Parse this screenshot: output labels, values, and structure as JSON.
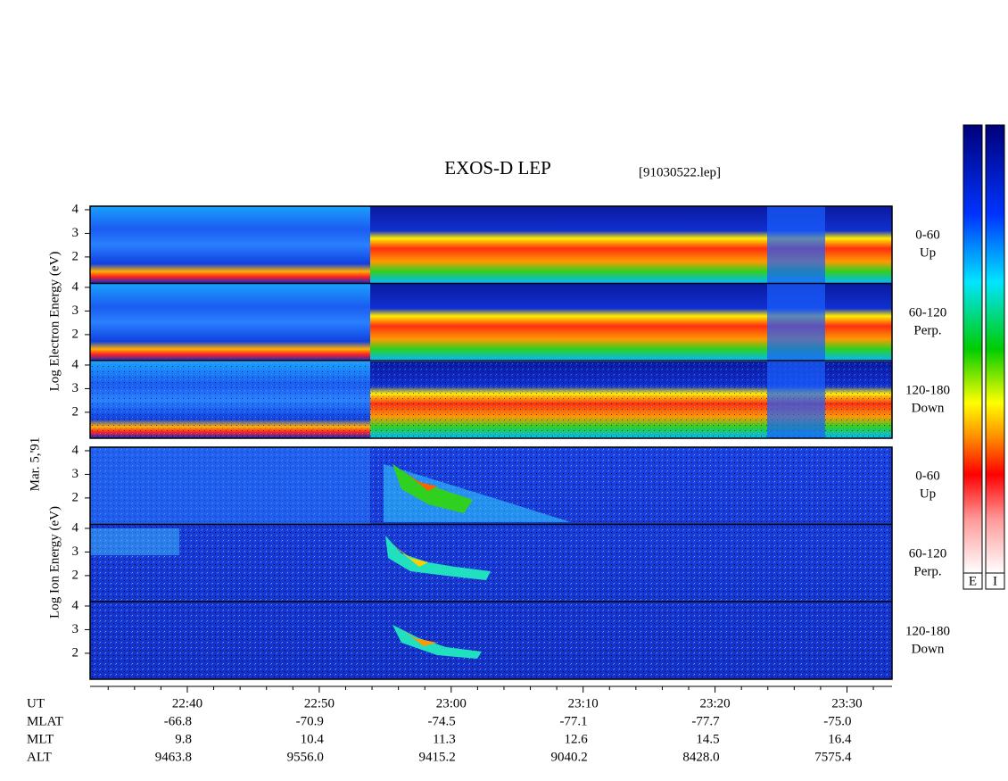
{
  "chart_data": {
    "type": "spectrogram",
    "title": "EXOS-D LEP",
    "file": "[91030522.lep]",
    "date": "Mar. 5,'91",
    "electron_axis_label": "Log Electron Energy (eV)",
    "ion_axis_label": "Log Ion Energy (eV)",
    "channels": [
      {
        "range": "0-60",
        "direction": "Up"
      },
      {
        "range": "60-120",
        "direction": "Perp."
      },
      {
        "range": "120-180",
        "direction": "Down"
      }
    ],
    "ylim": [
      0.9,
      4.15
    ],
    "yticks": [
      2,
      3,
      4
    ],
    "colorbar_labels": [
      "E",
      "I"
    ],
    "time_labels": [
      "22:40",
      "22:50",
      "23:00",
      "23:10",
      "23:20",
      "23:30"
    ],
    "ephemeris": [
      {
        "name": "UT",
        "values": []
      },
      {
        "name": "MLAT",
        "values": [
          "-66.8",
          "-70.9",
          "-74.5",
          "-77.1",
          "-77.7",
          "-75.0"
        ]
      },
      {
        "name": "MLT",
        "values": [
          "9.8",
          "10.4",
          "11.3",
          "12.6",
          "14.5",
          "16.4"
        ]
      },
      {
        "name": "ALT",
        "values": [
          "9463.8",
          "9556.0",
          "9415.2",
          "9040.2",
          "8428.0",
          "7575.4"
        ]
      }
    ]
  }
}
